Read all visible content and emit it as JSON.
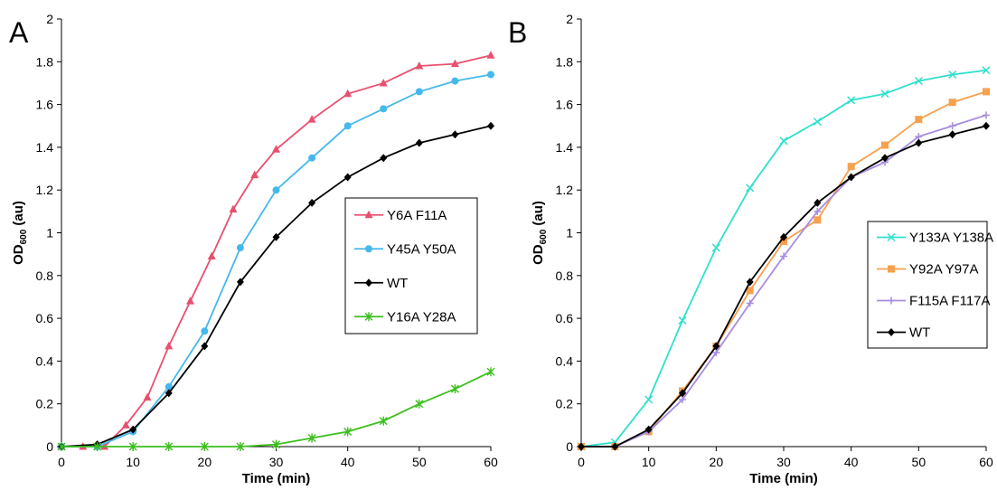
{
  "chart_data": [
    {
      "type": "line",
      "panel_label": "A",
      "xlabel": "Time (min)",
      "ylabel": {
        "main": "OD",
        "sub": "600",
        "suffix": " (au)"
      },
      "xlim": [
        0,
        60
      ],
      "ylim": [
        0,
        2
      ],
      "xticks": [
        "0",
        "10",
        "20",
        "30",
        "40",
        "50",
        "60"
      ],
      "yticks": [
        "0",
        "0.2",
        "0.4",
        "0.6",
        "0.8",
        "1",
        "1.2",
        "1.4",
        "1.6",
        "1.8",
        "2"
      ],
      "grid": false,
      "legend_position": "right",
      "series": [
        {
          "name": "Y6A F11A",
          "color": "#e8506e",
          "marker": "triangle",
          "x": [
            0,
            3,
            6,
            9,
            12,
            15,
            18,
            21,
            24,
            27,
            30,
            35,
            40,
            45,
            50,
            55,
            60
          ],
          "y": [
            0,
            0,
            0,
            0.1,
            0.23,
            0.47,
            0.68,
            0.89,
            1.11,
            1.27,
            1.39,
            1.53,
            1.65,
            1.7,
            1.78,
            1.79,
            1.83
          ]
        },
        {
          "name": "Y45A Y50A",
          "color": "#45b8ec",
          "marker": "circle",
          "x": [
            0,
            5,
            10,
            15,
            20,
            25,
            30,
            35,
            40,
            45,
            50,
            55,
            60
          ],
          "y": [
            0,
            0,
            0.07,
            0.28,
            0.54,
            0.93,
            1.2,
            1.35,
            1.5,
            1.58,
            1.66,
            1.71,
            1.74
          ]
        },
        {
          "name": "WT",
          "color": "#000000",
          "marker": "diamond",
          "x": [
            0,
            5,
            10,
            15,
            20,
            25,
            30,
            35,
            40,
            45,
            50,
            55,
            60
          ],
          "y": [
            0,
            0.01,
            0.08,
            0.25,
            0.47,
            0.77,
            0.98,
            1.14,
            1.26,
            1.35,
            1.42,
            1.46,
            1.5
          ]
        },
        {
          "name": "Y16A Y28A",
          "color": "#3cbf1e",
          "marker": "star",
          "x": [
            0,
            5,
            10,
            15,
            20,
            25,
            30,
            35,
            40,
            45,
            50,
            55,
            60
          ],
          "y": [
            0,
            0,
            0,
            0,
            0,
            0,
            0.01,
            0.04,
            0.07,
            0.12,
            0.2,
            0.27,
            0.35
          ]
        }
      ]
    },
    {
      "type": "line",
      "panel_label": "B",
      "xlabel": "Time (min)",
      "ylabel": {
        "main": "OD",
        "sub": "600",
        "suffix": " (au)"
      },
      "xlim": [
        0,
        60
      ],
      "ylim": [
        0,
        2
      ],
      "xticks": [
        "0",
        "10",
        "20",
        "30",
        "40",
        "50",
        "60"
      ],
      "yticks": [
        "0",
        "0.2",
        "0.4",
        "0.6",
        "0.8",
        "1",
        "1.2",
        "1.4",
        "1.6",
        "1.8",
        "2"
      ],
      "grid": false,
      "legend_position": "right",
      "series": [
        {
          "name": "Y133A Y138A",
          "color": "#2fe0cc",
          "marker": "x",
          "x": [
            0,
            5,
            10,
            15,
            20,
            25,
            30,
            35,
            40,
            45,
            50,
            55,
            60
          ],
          "y": [
            0,
            0.02,
            0.22,
            0.59,
            0.93,
            1.21,
            1.43,
            1.52,
            1.62,
            1.65,
            1.71,
            1.74,
            1.76
          ]
        },
        {
          "name": "Y92A Y97A",
          "color": "#f7a04d",
          "marker": "square",
          "x": [
            0,
            5,
            10,
            15,
            20,
            25,
            30,
            35,
            40,
            45,
            50,
            55,
            60
          ],
          "y": [
            0,
            0,
            0.07,
            0.26,
            0.47,
            0.73,
            0.96,
            1.06,
            1.31,
            1.41,
            1.53,
            1.61,
            1.66
          ]
        },
        {
          "name": "F115A F117A",
          "color": "#a78ce0",
          "marker": "plus",
          "x": [
            0,
            5,
            10,
            15,
            20,
            25,
            30,
            35,
            40,
            45,
            50,
            55,
            60
          ],
          "y": [
            0,
            0,
            0.07,
            0.22,
            0.44,
            0.67,
            0.89,
            1.1,
            1.26,
            1.33,
            1.45,
            1.5,
            1.55
          ]
        },
        {
          "name": "WT",
          "color": "#000000",
          "marker": "diamond",
          "x": [
            0,
            5,
            10,
            15,
            20,
            25,
            30,
            35,
            40,
            45,
            50,
            55,
            60
          ],
          "y": [
            0,
            0,
            0.08,
            0.25,
            0.47,
            0.77,
            0.98,
            1.14,
            1.26,
            1.35,
            1.42,
            1.46,
            1.5
          ]
        }
      ]
    }
  ]
}
